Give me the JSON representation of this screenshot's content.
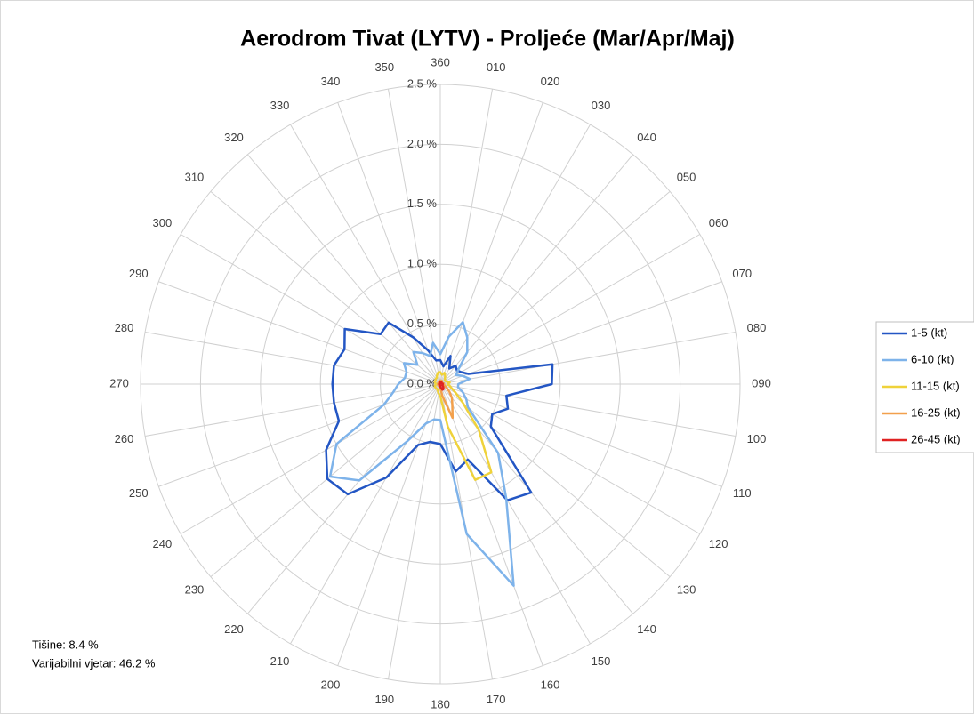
{
  "chart_data": {
    "type": "radar",
    "title": "Aerodrom Tivat (LYTV) - Proljeće (Mar/Apr/Maj)",
    "categories": [
      "360",
      "010",
      "020",
      "030",
      "040",
      "050",
      "060",
      "070",
      "080",
      "090",
      "100",
      "110",
      "120",
      "130",
      "140",
      "150",
      "160",
      "170",
      "180",
      "190",
      "200",
      "210",
      "220",
      "230",
      "240",
      "250",
      "260",
      "270",
      "280",
      "290",
      "300",
      "310",
      "320",
      "330",
      "340",
      "350"
    ],
    "series": [
      {
        "name": "1-5 (kt)",
        "color": "#2356c4",
        "values": [
          0.2,
          0.15,
          0.25,
          0.15,
          0.2,
          0.18,
          0.2,
          0.25,
          0.95,
          0.93,
          0.56,
          0.6,
          0.5,
          0.55,
          1.18,
          1.12,
          0.67,
          0.74,
          0.5,
          0.49,
          0.54,
          0.9,
          1.2,
          1.23,
          1.1,
          0.9,
          0.9,
          0.9,
          0.9,
          0.85,
          0.92,
          0.65,
          0.67,
          0.45,
          0.3,
          0.2
        ]
      },
      {
        "name": "6-10 (kt)",
        "color": "#7eb3ea",
        "values": [
          0.25,
          0.4,
          0.55,
          0.45,
          0.35,
          0.2,
          0.15,
          0.2,
          0.25,
          0.15,
          0.15,
          0.2,
          0.25,
          0.3,
          0.75,
          1.1,
          1.79,
          1.27,
          0.3,
          0.3,
          0.35,
          0.55,
          1.05,
          1.2,
          1.0,
          0.5,
          0.4,
          0.35,
          0.3,
          0.3,
          0.35,
          0.25,
          0.35,
          0.3,
          0.25,
          0.35
        ]
      },
      {
        "name": "11-15 (kt)",
        "color": "#efd23a",
        "values": [
          0.1,
          0.08,
          0.1,
          0.08,
          0.06,
          0.05,
          0.05,
          0.06,
          0.08,
          0.06,
          0.08,
          0.1,
          0.15,
          0.25,
          0.5,
          0.85,
          0.85,
          0.36,
          0.1,
          0.08,
          0.06,
          0.05,
          0.05,
          0.05,
          0.05,
          0.05,
          0.04,
          0.04,
          0.04,
          0.05,
          0.05,
          0.05,
          0.06,
          0.06,
          0.08,
          0.1
        ]
      },
      {
        "name": "16-25 (kt)",
        "color": "#f2a04c",
        "values": [
          0.03,
          0.03,
          0.03,
          0.03,
          0.02,
          0.02,
          0.02,
          0.02,
          0.03,
          0.03,
          0.03,
          0.04,
          0.06,
          0.1,
          0.15,
          0.2,
          0.3,
          0.1,
          0.03,
          0.02,
          0.02,
          0.02,
          0.02,
          0.02,
          0.02,
          0.02,
          0.02,
          0.02,
          0.02,
          0.02,
          0.02,
          0.02,
          0.02,
          0.02,
          0.02,
          0.03
        ]
      },
      {
        "name": "26-45 (kt)",
        "color": "#e02222",
        "values": [
          0.02,
          0.02,
          0.02,
          0.02,
          0.01,
          0.01,
          0.01,
          0.01,
          0.02,
          0.02,
          0.02,
          0.02,
          0.02,
          0.03,
          0.04,
          0.05,
          0.05,
          0.03,
          0.02,
          0.01,
          0.01,
          0.01,
          0.01,
          0.01,
          0.01,
          0.01,
          0.01,
          0.01,
          0.01,
          0.01,
          0.01,
          0.01,
          0.01,
          0.01,
          0.01,
          0.02
        ]
      }
    ],
    "ylim": [
      0,
      2.5
    ],
    "yticks": [
      {
        "value": 0,
        "label": "0.0 %"
      },
      {
        "value": 0.5,
        "label": "0.5 %"
      },
      {
        "value": 1,
        "label": "1.0 %"
      },
      {
        "value": 1.5,
        "label": "1.5 %"
      },
      {
        "value": 2,
        "label": "2.0 %"
      },
      {
        "value": 2.5,
        "label": "2.5 %"
      }
    ],
    "grid": true,
    "legend": "right",
    "annotations": [
      "Tišine: 8.4 %",
      "Varijabilni vjetar: 46.2 %"
    ]
  }
}
